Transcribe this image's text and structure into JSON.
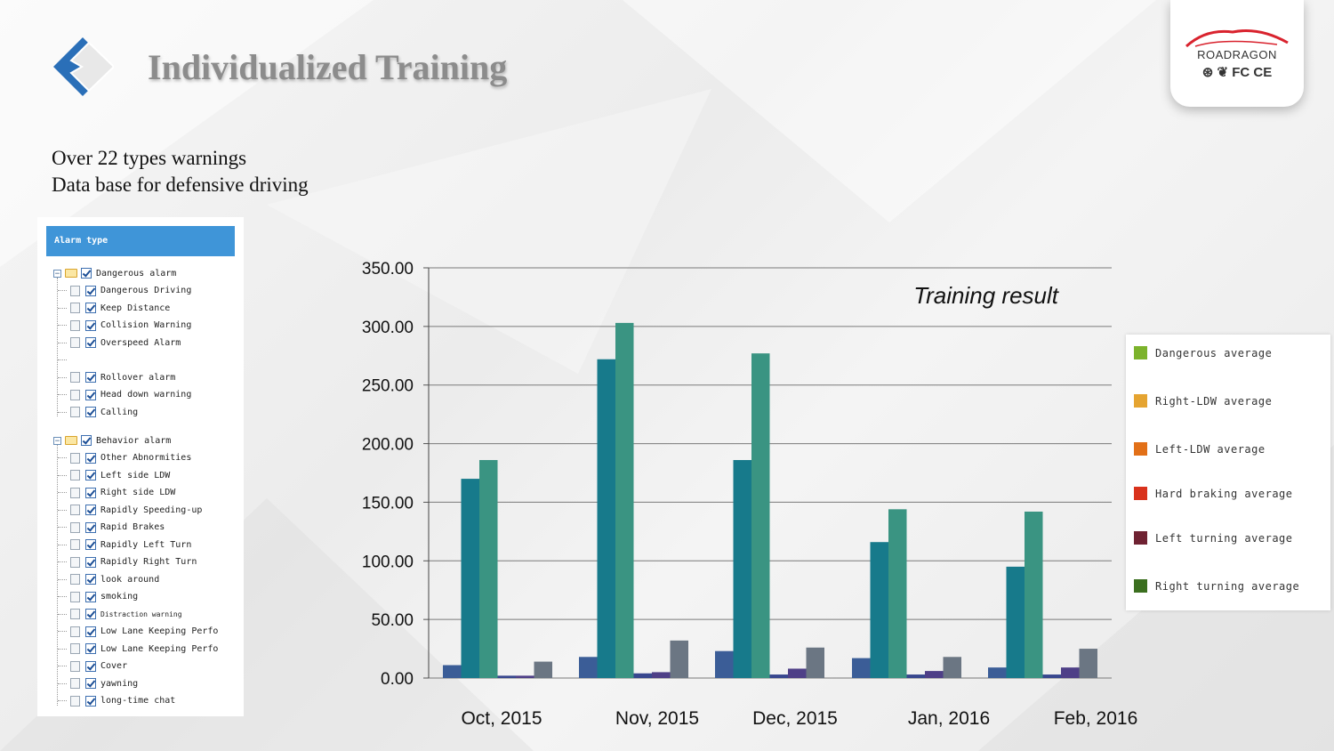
{
  "header": {
    "title": "Individualized Training"
  },
  "brand": {
    "name": "ROADRAGON",
    "certs": "⊛ ❦ FC CE"
  },
  "intro": {
    "lines": [
      "Over 22 types warnings",
      "Data base for defensive driving"
    ]
  },
  "alarm_panel": {
    "header": "Alarm type",
    "groups": [
      {
        "label": "Dangerous alarm",
        "items": [
          "Dangerous Driving",
          "Keep Distance",
          "Collision Warning",
          "Overspeed Alarm",
          "",
          "Rollover alarm",
          "Head down warning",
          "Calling"
        ]
      },
      {
        "label": "Behavior alarm",
        "items": [
          "Other  Abnormities",
          "Left side LDW",
          "Right side LDW",
          "Rapidly Speeding-up",
          "Rapid Brakes",
          "Rapidly Left Turn",
          "Rapidly Right Turn",
          "look around",
          "smoking",
          "Distraction warning",
          "Low Lane Keeping Perfo",
          "Low Lane Keeping Perfo",
          "Cover",
          "yawning",
          "long-time chat"
        ]
      }
    ]
  },
  "legend": {
    "items": [
      {
        "label": "Dangerous average",
        "color": "#7cb32c"
      },
      {
        "label": "Right-LDW average",
        "color": "#e5a431"
      },
      {
        "label": "Left-LDW average",
        "color": "#e27018"
      },
      {
        "label": "Hard braking average",
        "color": "#d9321c"
      },
      {
        "label": "Left turning average",
        "color": "#6f2232"
      },
      {
        "label": "Right turning average",
        "color": "#3b6f1f"
      }
    ]
  },
  "chart_data": {
    "type": "bar",
    "title": "Training result",
    "categories": [
      "Oct, 2015",
      "Nov, 2015",
      "Dec, 2015",
      "Jan, 2016",
      "Feb, 2016"
    ],
    "series": [
      {
        "color": "#3b5d97",
        "values": [
          11,
          18,
          23,
          17,
          9
        ]
      },
      {
        "color": "#177a8b",
        "values": [
          170,
          272,
          186,
          116,
          95
        ]
      },
      {
        "color": "#3a9482",
        "values": [
          186,
          303,
          277,
          144,
          142
        ]
      },
      {
        "color": "#38478e",
        "values": [
          2,
          4,
          3,
          3,
          3
        ]
      },
      {
        "color": "#4e3f87",
        "values": [
          2,
          5,
          8,
          6,
          9
        ]
      },
      {
        "color": "#6b7683",
        "values": [
          14,
          32,
          26,
          18,
          25
        ]
      }
    ],
    "ylim": [
      0,
      350
    ],
    "yticks": [
      "0.00",
      "50.00",
      "100.00",
      "150.00",
      "200.00",
      "250.00",
      "300.00",
      "350.00"
    ],
    "grid": true
  }
}
